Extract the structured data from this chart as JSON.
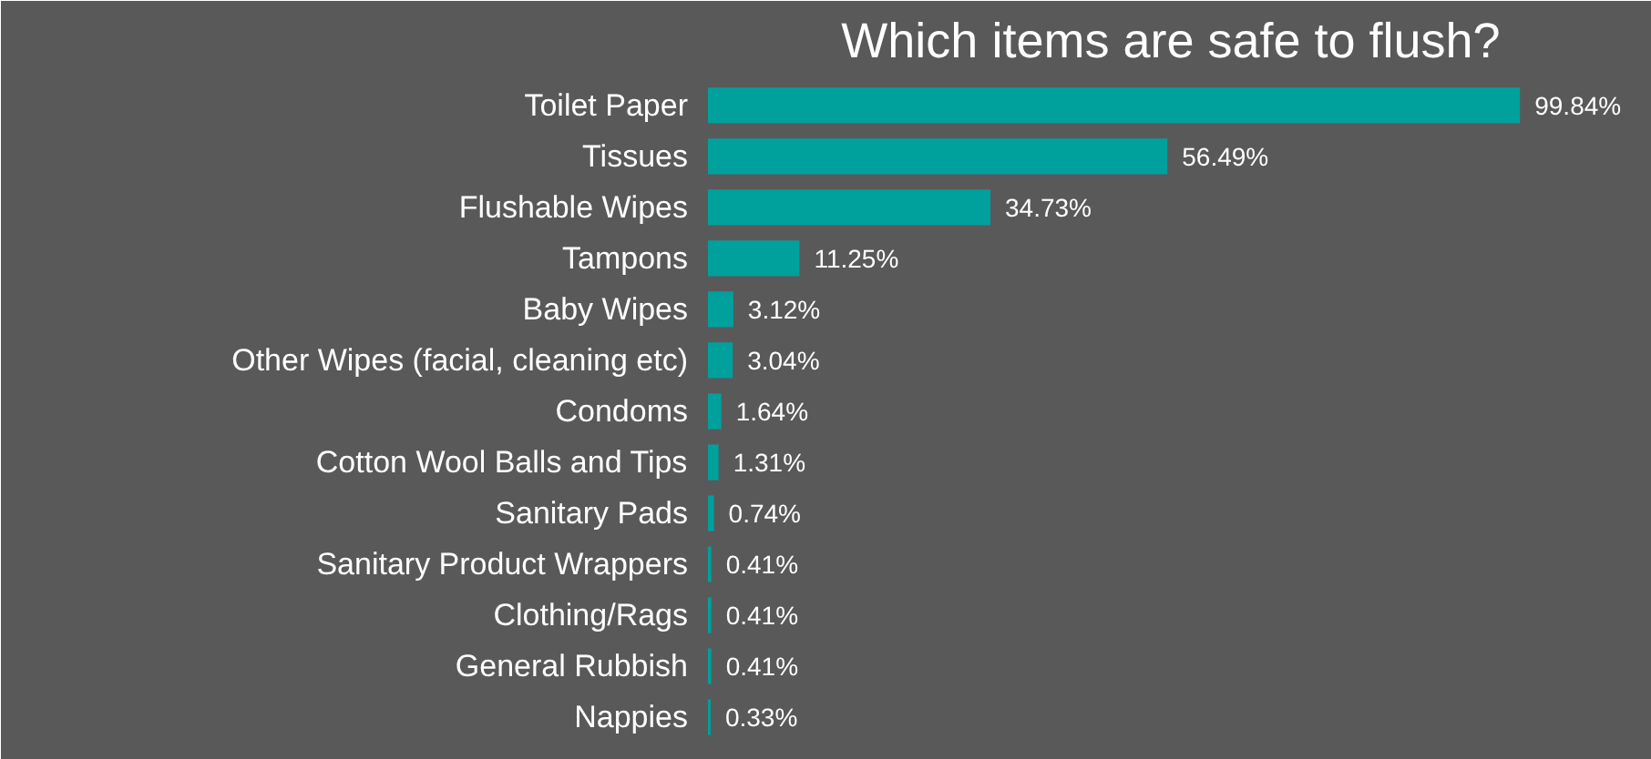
{
  "chart_data": {
    "type": "bar",
    "orientation": "horizontal",
    "title": "Which items are safe to flush?",
    "categories": [
      "Toilet Paper",
      "Tissues",
      "Flushable Wipes",
      "Tampons",
      "Baby Wipes",
      "Other Wipes (facial, cleaning etc)",
      "Condoms",
      "Cotton Wool Balls and Tips",
      "Sanitary Pads",
      "Sanitary Product Wrappers",
      "Clothing/Rags",
      "General Rubbish",
      "Nappies"
    ],
    "values": [
      99.84,
      56.49,
      34.73,
      11.25,
      3.12,
      3.04,
      1.64,
      1.31,
      0.74,
      0.41,
      0.41,
      0.41,
      0.33
    ],
    "value_labels": [
      "99.84%",
      "56.49%",
      "34.73%",
      "11.25%",
      "3.12%",
      "3.04%",
      "1.64%",
      "1.31%",
      "0.74%",
      "0.41%",
      "0.41%",
      "0.41%",
      "0.33%"
    ],
    "color": "#00a09d",
    "grid": false
  }
}
